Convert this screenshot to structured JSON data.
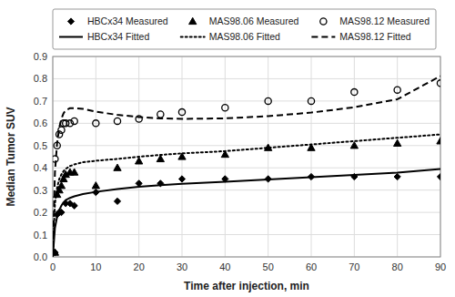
{
  "chart_data": {
    "type": "line",
    "x_label": "Time after injection, min",
    "y_label": "Median Tumor SUV",
    "xlim": [
      0,
      90
    ],
    "ylim": [
      0,
      0.9
    ],
    "xticks": [
      0,
      10,
      20,
      30,
      40,
      50,
      60,
      70,
      80,
      90
    ],
    "yticks": [
      {
        "value": 0,
        "label": "0.0"
      },
      0.1,
      0.2,
      0.3,
      0.4,
      0.5,
      0.6,
      0.7,
      0.8,
      0.9
    ],
    "grid": true,
    "legend": "top",
    "series": [
      {
        "name": "HBCx34 Measured",
        "type": "scatter",
        "marker": "diamond",
        "color": "#000000",
        "x": [
          0.5,
          1,
          1.5,
          2,
          3,
          4,
          5,
          10,
          15,
          20,
          25,
          30,
          40,
          50,
          60,
          70,
          80,
          90
        ],
        "values": [
          0.02,
          0.19,
          0.2,
          0.2,
          0.24,
          0.24,
          0.23,
          0.29,
          0.25,
          0.33,
          0.33,
          0.35,
          0.35,
          0.35,
          0.36,
          0.36,
          0.36,
          0.36
        ]
      },
      {
        "name": "MAS98.06 Measured",
        "type": "scatter",
        "marker": "triangle",
        "color": "#000000",
        "x": [
          0.5,
          1,
          1.5,
          2,
          2.5,
          3,
          4,
          5,
          10,
          15,
          20,
          25,
          30,
          40,
          50,
          60,
          70,
          80,
          90
        ],
        "values": [
          0.02,
          0.28,
          0.3,
          0.32,
          0.35,
          0.37,
          0.38,
          0.38,
          0.32,
          0.4,
          0.43,
          0.44,
          0.45,
          0.46,
          0.49,
          0.49,
          0.5,
          0.51,
          0.52
        ]
      },
      {
        "name": "MAS98.12 Measured",
        "type": "scatter",
        "marker": "open-circle",
        "color": "#000000",
        "x": [
          0.5,
          1,
          1.5,
          2,
          2.5,
          3,
          4,
          5,
          10,
          15,
          20,
          25,
          30,
          40,
          50,
          60,
          70,
          80,
          90
        ],
        "values": [
          0.44,
          0.5,
          0.55,
          0.57,
          0.6,
          0.6,
          0.6,
          0.61,
          0.6,
          0.61,
          0.62,
          0.64,
          0.65,
          0.67,
          0.7,
          0.7,
          0.74,
          0.75,
          0.78
        ]
      },
      {
        "name": "HBCx34 Fitted",
        "type": "line",
        "line_style": "solid",
        "color": "#000000",
        "x": [
          0.0,
          0.5,
          1.0,
          1.5,
          2.0,
          2.5,
          3.0,
          4.0,
          5.0,
          7.0,
          10.0,
          15.0,
          20.0,
          25.0,
          30.0,
          40.0,
          50.0,
          60.0,
          70.0,
          80.0,
          90.0
        ],
        "values": [
          0.0,
          0.13,
          0.18,
          0.21,
          0.23,
          0.245,
          0.255,
          0.265,
          0.272,
          0.282,
          0.292,
          0.305,
          0.315,
          0.322,
          0.328,
          0.338,
          0.348,
          0.358,
          0.368,
          0.378,
          0.395
        ]
      },
      {
        "name": "MAS98.06 Fitted",
        "type": "line",
        "line_style": "dotted",
        "color": "#000000",
        "x": [
          0.0,
          0.5,
          1.0,
          1.5,
          2.0,
          2.5,
          3.0,
          4.0,
          5.0,
          7.0,
          10.0,
          15.0,
          20.0,
          25.0,
          30.0,
          40.0,
          50.0,
          60.0,
          70.0,
          80.0,
          90.0
        ],
        "values": [
          0.0,
          0.24,
          0.31,
          0.35,
          0.37,
          0.385,
          0.395,
          0.408,
          0.415,
          0.425,
          0.432,
          0.44,
          0.45,
          0.458,
          0.465,
          0.475,
          0.49,
          0.505,
          0.52,
          0.535,
          0.55
        ]
      },
      {
        "name": "MAS98.12 Fitted",
        "type": "line",
        "line_style": "dashed",
        "color": "#000000",
        "x": [
          0.0,
          0.5,
          1.0,
          1.5,
          2.0,
          2.5,
          3.0,
          4.0,
          5.0,
          7.0,
          10.0,
          15.0,
          20.0,
          25.0,
          30.0,
          40.0,
          50.0,
          60.0,
          70.0,
          80.0,
          90.0
        ],
        "values": [
          0.0,
          0.38,
          0.51,
          0.58,
          0.62,
          0.645,
          0.658,
          0.668,
          0.668,
          0.665,
          0.652,
          0.638,
          0.628,
          0.622,
          0.62,
          0.622,
          0.632,
          0.648,
          0.672,
          0.708,
          0.812
        ]
      }
    ]
  }
}
